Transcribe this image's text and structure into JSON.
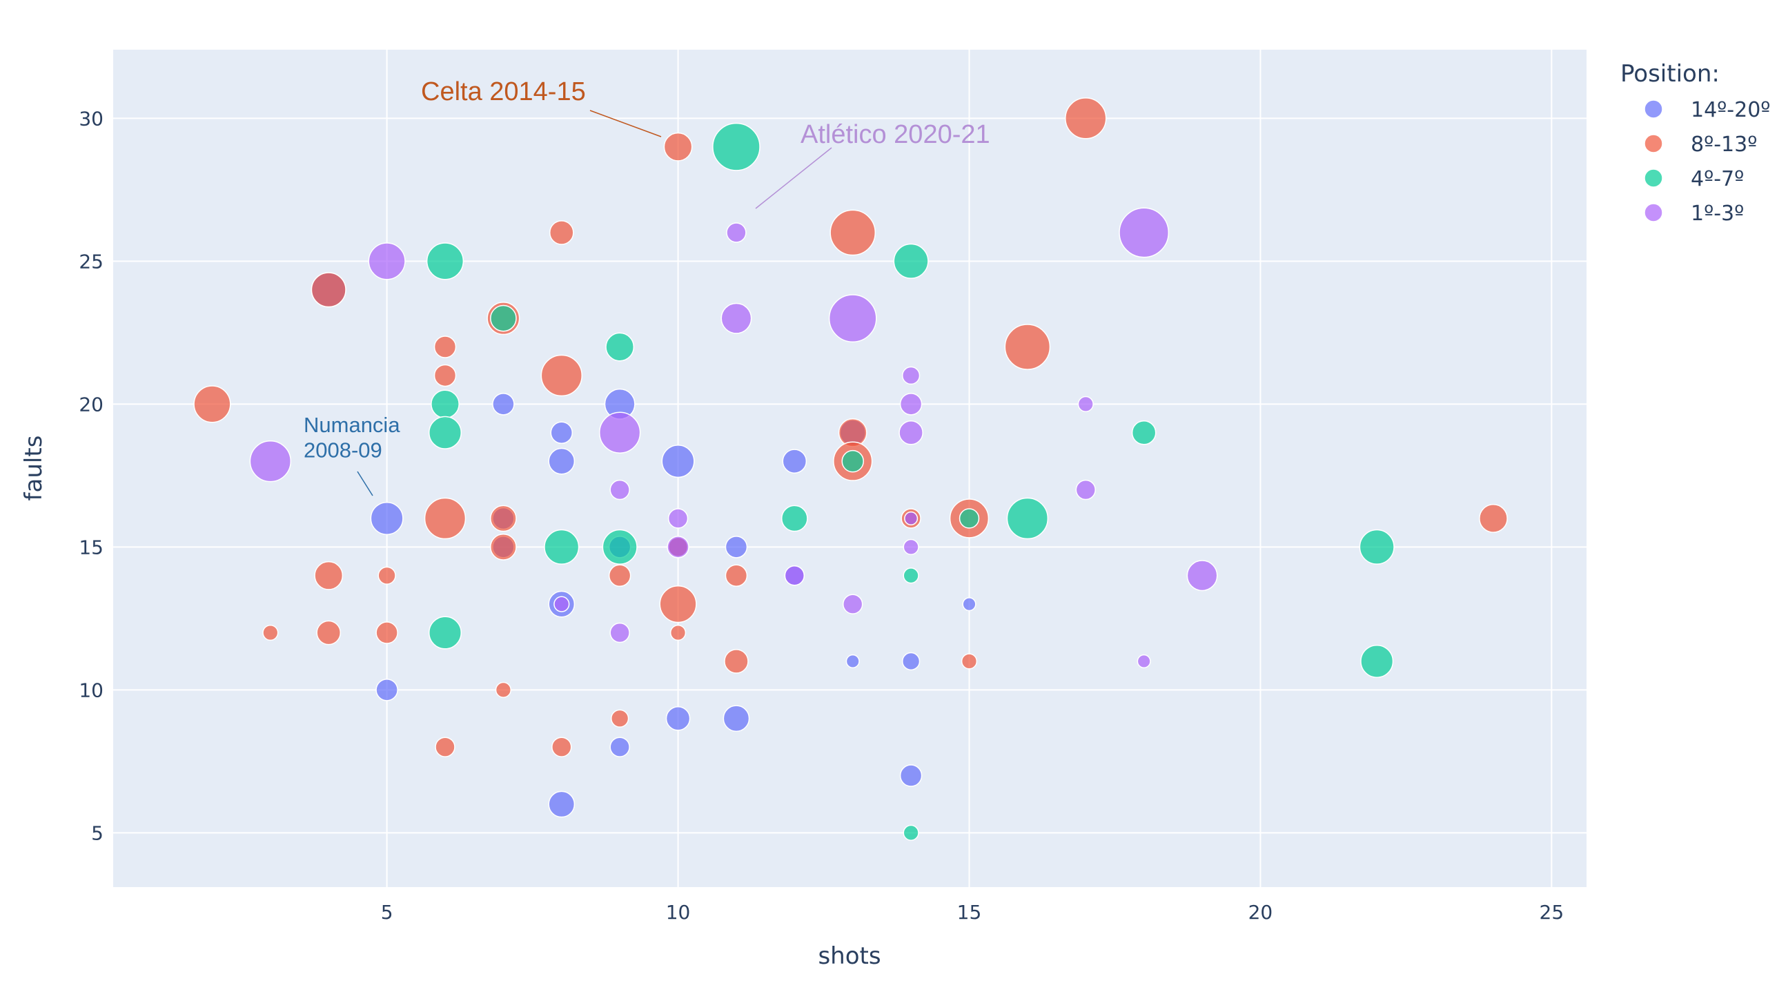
{
  "chart_data": {
    "type": "scatter",
    "xlabel": "shots",
    "ylabel": "faults",
    "xlim": [
      0.3,
      25.6
    ],
    "ylim": [
      3.1,
      32.4
    ],
    "x_ticks": [
      5,
      10,
      15,
      20,
      25
    ],
    "y_ticks": [
      5,
      10,
      15,
      20,
      25,
      30
    ],
    "grid": true,
    "legend_title": "Position:",
    "legend_position": "top-right",
    "series": [
      {
        "name": "14º-20º",
        "color": "#636efa",
        "points": [
          {
            "x": 4,
            "y": 24,
            "size": 16
          },
          {
            "x": 5,
            "y": 16,
            "size": 15
          },
          {
            "x": 5,
            "y": 10,
            "size": 10
          },
          {
            "x": 7,
            "y": 20,
            "size": 10
          },
          {
            "x": 7,
            "y": 16,
            "size": 10
          },
          {
            "x": 7,
            "y": 15,
            "size": 10
          },
          {
            "x": 8,
            "y": 19,
            "size": 10
          },
          {
            "x": 8,
            "y": 18,
            "size": 12
          },
          {
            "x": 8,
            "y": 13,
            "size": 12
          },
          {
            "x": 8,
            "y": 6,
            "size": 12
          },
          {
            "x": 9,
            "y": 20,
            "size": 14
          },
          {
            "x": 9,
            "y": 15,
            "size": 10
          },
          {
            "x": 9,
            "y": 8,
            "size": 9
          },
          {
            "x": 10,
            "y": 18,
            "size": 15
          },
          {
            "x": 10,
            "y": 15,
            "size": 9
          },
          {
            "x": 10,
            "y": 9,
            "size": 11
          },
          {
            "x": 11,
            "y": 15,
            "size": 10
          },
          {
            "x": 11,
            "y": 9,
            "size": 12
          },
          {
            "x": 12,
            "y": 18,
            "size": 11
          },
          {
            "x": 12,
            "y": 14,
            "size": 9
          },
          {
            "x": 13,
            "y": 19,
            "size": 12
          },
          {
            "x": 13,
            "y": 11,
            "size": 6
          },
          {
            "x": 14,
            "y": 11,
            "size": 8
          },
          {
            "x": 14,
            "y": 7,
            "size": 10
          },
          {
            "x": 14,
            "y": 16,
            "size": 6
          },
          {
            "x": 15,
            "y": 13,
            "size": 6
          }
        ]
      },
      {
        "name": "8º-13º",
        "color": "#ef553b",
        "points": [
          {
            "x": 2,
            "y": 20,
            "size": 17
          },
          {
            "x": 3,
            "y": 12,
            "size": 7
          },
          {
            "x": 4,
            "y": 24,
            "size": 16
          },
          {
            "x": 4,
            "y": 14,
            "size": 13
          },
          {
            "x": 4,
            "y": 12,
            "size": 11
          },
          {
            "x": 5,
            "y": 14,
            "size": 8
          },
          {
            "x": 5,
            "y": 12,
            "size": 10
          },
          {
            "x": 6,
            "y": 22,
            "size": 10
          },
          {
            "x": 6,
            "y": 21,
            "size": 10
          },
          {
            "x": 6,
            "y": 16,
            "size": 19
          },
          {
            "x": 6,
            "y": 8,
            "size": 9
          },
          {
            "x": 7,
            "y": 23,
            "size": 15
          },
          {
            "x": 7,
            "y": 16,
            "size": 12
          },
          {
            "x": 7,
            "y": 15,
            "size": 12
          },
          {
            "x": 7,
            "y": 10,
            "size": 7
          },
          {
            "x": 8,
            "y": 26,
            "size": 11
          },
          {
            "x": 8,
            "y": 21,
            "size": 19
          },
          {
            "x": 8,
            "y": 8,
            "size": 9
          },
          {
            "x": 9,
            "y": 14,
            "size": 10
          },
          {
            "x": 9,
            "y": 9,
            "size": 8
          },
          {
            "x": 10,
            "y": 29,
            "size": 13
          },
          {
            "x": 10,
            "y": 13,
            "size": 17
          },
          {
            "x": 10,
            "y": 12,
            "size": 7
          },
          {
            "x": 10,
            "y": 15,
            "size": 9
          },
          {
            "x": 11,
            "y": 14,
            "size": 10
          },
          {
            "x": 11,
            "y": 11,
            "size": 11
          },
          {
            "x": 13,
            "y": 26,
            "size": 21
          },
          {
            "x": 13,
            "y": 19,
            "size": 13
          },
          {
            "x": 13,
            "y": 18,
            "size": 18
          },
          {
            "x": 14,
            "y": 16,
            "size": 9
          },
          {
            "x": 15,
            "y": 16,
            "size": 18
          },
          {
            "x": 15,
            "y": 11,
            "size": 7
          },
          {
            "x": 16,
            "y": 22,
            "size": 21
          },
          {
            "x": 17,
            "y": 30,
            "size": 19
          },
          {
            "x": 24,
            "y": 16,
            "size": 13
          }
        ]
      },
      {
        "name": "4º-7º",
        "color": "#00cc96",
        "points": [
          {
            "x": 6,
            "y": 25,
            "size": 17
          },
          {
            "x": 6,
            "y": 20,
            "size": 13
          },
          {
            "x": 6,
            "y": 19,
            "size": 15
          },
          {
            "x": 6,
            "y": 12,
            "size": 15
          },
          {
            "x": 7,
            "y": 23,
            "size": 12
          },
          {
            "x": 8,
            "y": 15,
            "size": 16
          },
          {
            "x": 9,
            "y": 22,
            "size": 13
          },
          {
            "x": 9,
            "y": 15,
            "size": 16
          },
          {
            "x": 11,
            "y": 29,
            "size": 22
          },
          {
            "x": 12,
            "y": 16,
            "size": 12
          },
          {
            "x": 13,
            "y": 18,
            "size": 10
          },
          {
            "x": 14,
            "y": 25,
            "size": 16
          },
          {
            "x": 14,
            "y": 14,
            "size": 7
          },
          {
            "x": 14,
            "y": 5,
            "size": 7
          },
          {
            "x": 15,
            "y": 16,
            "size": 9
          },
          {
            "x": 16,
            "y": 16,
            "size": 19
          },
          {
            "x": 18,
            "y": 19,
            "size": 11
          },
          {
            "x": 22,
            "y": 15,
            "size": 16
          },
          {
            "x": 22,
            "y": 11,
            "size": 15
          }
        ]
      },
      {
        "name": "1º-3º",
        "color": "#ab63fa",
        "points": [
          {
            "x": 3,
            "y": 18,
            "size": 19
          },
          {
            "x": 5,
            "y": 25,
            "size": 17
          },
          {
            "x": 8,
            "y": 13,
            "size": 7
          },
          {
            "x": 9,
            "y": 19,
            "size": 19
          },
          {
            "x": 9,
            "y": 17,
            "size": 9
          },
          {
            "x": 9,
            "y": 12,
            "size": 9
          },
          {
            "x": 10,
            "y": 16,
            "size": 9
          },
          {
            "x": 10,
            "y": 15,
            "size": 10
          },
          {
            "x": 11,
            "y": 26,
            "size": 9
          },
          {
            "x": 11,
            "y": 23,
            "size": 14
          },
          {
            "x": 12,
            "y": 14,
            "size": 9
          },
          {
            "x": 13,
            "y": 23,
            "size": 22
          },
          {
            "x": 13,
            "y": 13,
            "size": 9
          },
          {
            "x": 14,
            "y": 21,
            "size": 8
          },
          {
            "x": 14,
            "y": 20,
            "size": 10
          },
          {
            "x": 14,
            "y": 19,
            "size": 11
          },
          {
            "x": 14,
            "y": 16,
            "size": 6
          },
          {
            "x": 14,
            "y": 15,
            "size": 7
          },
          {
            "x": 17,
            "y": 20,
            "size": 7
          },
          {
            "x": 17,
            "y": 17,
            "size": 9
          },
          {
            "x": 18,
            "y": 26,
            "size": 23
          },
          {
            "x": 18,
            "y": 11,
            "size": 6
          },
          {
            "x": 19,
            "y": 14,
            "size": 14
          }
        ]
      }
    ],
    "annotations": [
      {
        "lines": [
          "Celta 2014-15"
        ],
        "x": 10,
        "y": 29,
        "color": "#c0581f"
      },
      {
        "lines": [
          "Atlético 2020-21"
        ],
        "x": 11,
        "y": 26,
        "color": "#b490d6"
      },
      {
        "lines": [
          "Numancia",
          "2008-09"
        ],
        "x": 5,
        "y": 16,
        "color": "#2e6fa8"
      }
    ]
  }
}
